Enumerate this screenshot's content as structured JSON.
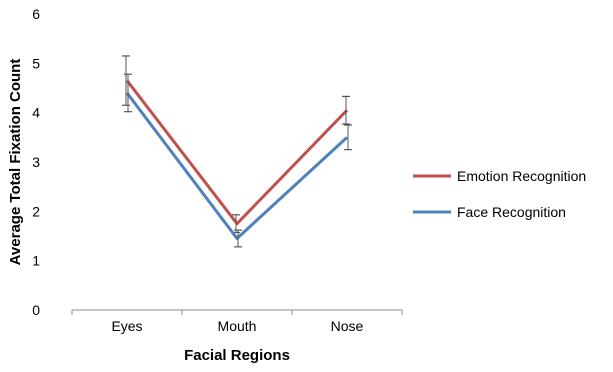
{
  "chart_data": {
    "type": "line",
    "title": "",
    "xlabel": "Facial Regions",
    "ylabel": "Average Total Fixation Count",
    "categories": [
      "Eyes",
      "Mouth",
      "Nose"
    ],
    "ylim": [
      0,
      6
    ],
    "yticks": [
      "0",
      "1",
      "2",
      "3",
      "4",
      "5",
      "6"
    ],
    "grid": false,
    "legend_position": "right",
    "series": [
      {
        "name": "Emotion Recognition",
        "color": "#c0504d",
        "values": [
          4.65,
          1.75,
          4.05
        ],
        "error": [
          0.5,
          0.18,
          0.28
        ]
      },
      {
        "name": "Face Recognition",
        "color": "#4f81bd",
        "values": [
          4.4,
          1.45,
          3.5
        ],
        "error": [
          0.38,
          0.17,
          0.25
        ]
      }
    ]
  }
}
